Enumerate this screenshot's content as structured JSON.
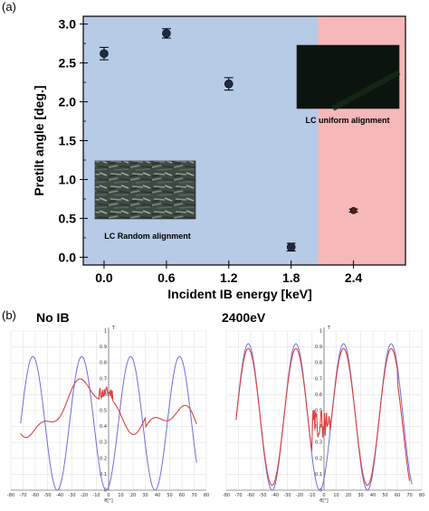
{
  "panel_a_label": "(a)",
  "panel_b_label": "(b)",
  "chart_data": [
    {
      "type": "scatter",
      "xlabel": "Incident IB energy [keV]",
      "ylabel": "Pretilt angle [deg.]",
      "xlim": [
        -0.2,
        2.9
      ],
      "ylim": [
        -0.1,
        3.1
      ],
      "xticks": [
        "0.0",
        "0.6",
        "1.2",
        "1.8",
        "2.4"
      ],
      "yticks": [
        "0.0",
        "0.5",
        "1.0",
        "1.5",
        "2.0",
        "2.5",
        "3.0"
      ],
      "x": [
        0.0,
        0.6,
        1.2,
        1.8,
        2.4
      ],
      "y": [
        2.62,
        2.88,
        2.23,
        0.13,
        0.6
      ],
      "yerr": [
        0.08,
        0.06,
        0.08,
        0.05,
        0.02
      ],
      "regions": [
        {
          "from": -0.2,
          "to": 2.06,
          "color": "#b7cae6"
        },
        {
          "from": 2.06,
          "to": 2.9,
          "color": "#f6b8b8"
        }
      ],
      "insets": [
        {
          "caption": "LC Random alignment",
          "texture": "random"
        },
        {
          "caption": "LC uniform alignment",
          "texture": "uniform"
        }
      ],
      "marker_color": "#1f2a44"
    },
    {
      "type": "line",
      "title": "No IB",
      "xlabel": "θ[°]",
      "ylabel": "T",
      "xlim": [
        -80,
        80
      ],
      "ylim": [
        0,
        1.0
      ],
      "xticks": [
        "-80",
        "-70",
        "-60",
        "-50",
        "-40",
        "-30",
        "-20",
        "-10",
        "0",
        "10",
        "20",
        "30",
        "40",
        "50",
        "60",
        "70",
        "80"
      ],
      "yticks": [
        "0",
        "0.1",
        "0.2",
        "0.3",
        "0.4",
        "0.5",
        "0.6",
        "0.7",
        "0.8",
        "0.9",
        "1"
      ],
      "series": [
        {
          "color": "#6e6ee0",
          "kind": "blue",
          "amp": 0.42,
          "center": 0.42,
          "period": 40,
          "phase": -62
        },
        {
          "color": "#e04040",
          "kind": "red_noib"
        }
      ]
    },
    {
      "type": "line",
      "title": "2400eV",
      "xlabel": "θ[°]",
      "ylabel": "T",
      "xlim": [
        -80,
        80
      ],
      "ylim": [
        0,
        1.0
      ],
      "xticks": [
        "-80",
        "-70",
        "-60",
        "-50",
        "-40",
        "-30",
        "-20",
        "-10",
        "0",
        "10",
        "20",
        "30",
        "40",
        "50",
        "60",
        "70",
        "80"
      ],
      "yticks": [
        "0",
        "0.1",
        "0.2",
        "0.3",
        "0.4",
        "0.5",
        "0.6",
        "0.7",
        "0.8",
        "0.9",
        "1"
      ],
      "series": [
        {
          "color": "#6e6ee0",
          "kind": "blue",
          "amp": 0.46,
          "center": 0.46,
          "period": 39,
          "phase": -62
        },
        {
          "color": "#e04040",
          "kind": "red_2400"
        }
      ]
    }
  ]
}
